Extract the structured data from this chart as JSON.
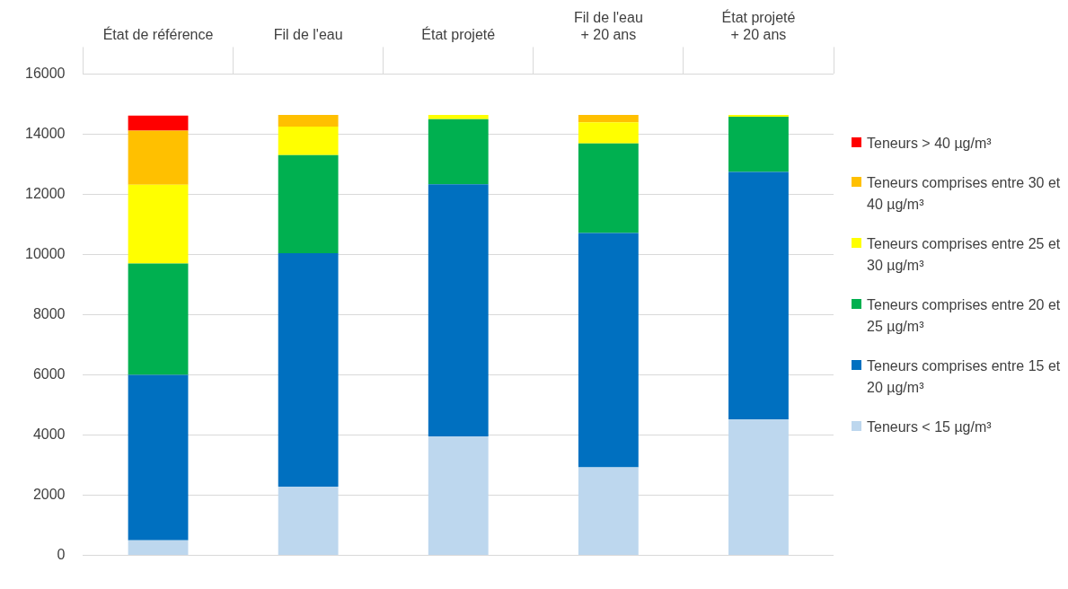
{
  "chart_data": {
    "type": "bar",
    "stacked": true,
    "categories": [
      "État de référence",
      "Fil de l'eau",
      "État projeté",
      "Fil de l'eau\n+ 20 ans",
      "État projeté\n+ 20 ans"
    ],
    "series": [
      {
        "name": "Teneurs < 15 µg/m³",
        "color": "#bdd7ee",
        "values": [
          500,
          2280,
          3950,
          2920,
          4510
        ]
      },
      {
        "name": "Teneurs comprises entre 15 et 20 µg/m³",
        "color": "#0070c0",
        "values": [
          5500,
          7760,
          8380,
          7790,
          8230
        ]
      },
      {
        "name": "Teneurs comprises entre 20 et 25 µg/m³",
        "color": "#00b050",
        "values": [
          3700,
          3260,
          2170,
          2980,
          1840
        ]
      },
      {
        "name": "Teneurs comprises entre 25 et 30 µg/m³",
        "color": "#ffff00",
        "values": [
          2620,
          950,
          140,
          700,
          60
        ]
      },
      {
        "name": "Teneurs comprises entre 30 et 40 µg/m³",
        "color": "#ffc000",
        "values": [
          1800,
          390,
          0,
          250,
          0
        ]
      },
      {
        "name": "Teneurs > 40 µg/m³",
        "color": "#ff0000",
        "values": [
          500,
          0,
          0,
          0,
          0
        ]
      }
    ],
    "ylim": [
      0,
      16000
    ],
    "yticks": [
      0,
      2000,
      4000,
      6000,
      8000,
      10000,
      12000,
      14000,
      16000
    ],
    "grid": "y",
    "legend": "right"
  }
}
